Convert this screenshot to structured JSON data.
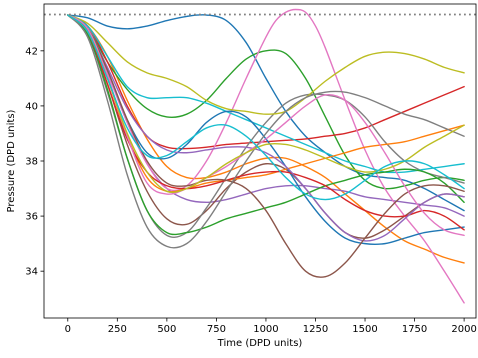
{
  "chart_data": {
    "type": "line",
    "xlabel": "Time (DPD units)",
    "ylabel": "Pressure (DPD units)",
    "xlim": [
      -120,
      2060
    ],
    "ylim": [
      32.3,
      43.7
    ],
    "x_ticks": [
      0,
      250,
      500,
      750,
      1000,
      1250,
      1500,
      1750,
      2000
    ],
    "y_ticks": [
      34,
      36,
      38,
      40,
      42
    ],
    "grid": false,
    "legend": "none",
    "reference_line": {
      "y": 43.32,
      "style": "dotted",
      "color": "#808080"
    },
    "series": [
      {
        "color": "#1f77b4",
        "x": [
          0,
          100,
          200,
          300,
          400,
          500,
          600,
          700,
          800,
          900,
          1000,
          1100,
          1200,
          1300,
          1400,
          1500,
          1600,
          1700,
          1800,
          1900,
          2000
        ],
        "values": [
          43.3,
          43.2,
          42.9,
          42.8,
          42.9,
          43.1,
          43.25,
          43.3,
          43.1,
          42.3,
          41.0,
          39.8,
          38.9,
          38.3,
          37.8,
          37.5,
          37.4,
          37.3,
          37.0,
          36.6,
          36.2
        ]
      },
      {
        "color": "#ff7f0e",
        "x": [
          0,
          100,
          200,
          300,
          400,
          500,
          600,
          700,
          800,
          900,
          1000,
          1100,
          1200,
          1300,
          1400,
          1500,
          1600,
          1700,
          1800,
          1900,
          2000
        ],
        "values": [
          43.3,
          42.9,
          41.8,
          40.2,
          38.8,
          37.8,
          37.4,
          37.4,
          37.6,
          37.9,
          38.1,
          38.1,
          37.8,
          37.4,
          36.8,
          36.2,
          35.6,
          35.1,
          34.8,
          34.5,
          34.3
        ]
      },
      {
        "color": "#2ca02c",
        "x": [
          0,
          100,
          200,
          300,
          400,
          500,
          600,
          700,
          800,
          900,
          1000,
          1100,
          1200,
          1300,
          1400,
          1500,
          1600,
          1700,
          1800,
          1900,
          2000
        ],
        "values": [
          43.3,
          42.8,
          41.6,
          40.6,
          39.9,
          39.6,
          39.7,
          40.2,
          41.0,
          41.7,
          42.0,
          41.9,
          41.0,
          39.6,
          38.2,
          37.3,
          37.0,
          37.1,
          37.3,
          37.4,
          37.3
        ]
      },
      {
        "color": "#d62728",
        "x": [
          0,
          100,
          200,
          300,
          400,
          500,
          600,
          700,
          800,
          900,
          1000,
          1100,
          1200,
          1300,
          1400,
          1500,
          1600,
          1700,
          1800,
          1900,
          2000
        ],
        "values": [
          43.3,
          42.9,
          41.6,
          40.0,
          38.9,
          38.5,
          38.45,
          38.5,
          38.6,
          38.65,
          38.7,
          38.75,
          38.8,
          38.9,
          39.0,
          39.2,
          39.5,
          39.8,
          40.1,
          40.4,
          40.7
        ]
      },
      {
        "color": "#9467bd",
        "x": [
          0,
          100,
          200,
          300,
          400,
          500,
          600,
          700,
          800,
          900,
          1000,
          1100,
          1200,
          1300,
          1400,
          1500,
          1600,
          1700,
          1800,
          1900,
          2000
        ],
        "values": [
          43.3,
          42.8,
          41.2,
          39.4,
          37.9,
          37.0,
          36.6,
          36.5,
          36.6,
          36.8,
          37.0,
          37.1,
          37.1,
          37.0,
          36.9,
          36.7,
          36.6,
          36.5,
          36.4,
          36.3,
          36.0
        ]
      },
      {
        "color": "#8c564b",
        "x": [
          0,
          100,
          200,
          300,
          400,
          500,
          600,
          700,
          800,
          900,
          1000,
          1100,
          1200,
          1300,
          1400,
          1500,
          1600,
          1700,
          1800,
          1900,
          2000
        ],
        "values": [
          43.3,
          42.7,
          40.8,
          38.6,
          36.9,
          35.9,
          35.7,
          36.2,
          37.0,
          37.6,
          37.9,
          37.7,
          37.0,
          36.1,
          35.4,
          35.2,
          35.5,
          36.0,
          36.5,
          36.8,
          36.7
        ]
      },
      {
        "color": "#e377c2",
        "x": [
          0,
          100,
          200,
          300,
          400,
          500,
          600,
          700,
          800,
          900,
          1000,
          1050,
          1100,
          1150,
          1200,
          1250,
          1300,
          1400,
          1500,
          1600,
          1700,
          1800,
          1900,
          2000
        ],
        "values": [
          43.3,
          42.8,
          41.2,
          39.4,
          37.9,
          37.0,
          37.1,
          38.0,
          39.4,
          41.0,
          42.5,
          43.1,
          43.4,
          43.5,
          43.4,
          42.9,
          42.1,
          40.2,
          38.4,
          37.0,
          36.0,
          35.1,
          34.0,
          32.85
        ]
      },
      {
        "color": "#7f7f7f",
        "x": [
          0,
          100,
          200,
          300,
          400,
          500,
          600,
          700,
          800,
          900,
          1000,
          1100,
          1200,
          1300,
          1400,
          1500,
          1600,
          1700,
          1800,
          1900,
          2000
        ],
        "values": [
          43.3,
          42.6,
          40.5,
          38.1,
          36.2,
          35.3,
          35.4,
          36.3,
          37.4,
          38.5,
          39.4,
          40.1,
          40.4,
          40.4,
          40.2,
          39.6,
          38.7,
          38.0,
          37.6,
          37.4,
          37.2
        ]
      },
      {
        "color": "#bcbd22",
        "x": [
          0,
          100,
          200,
          300,
          400,
          500,
          600,
          700,
          800,
          900,
          1000,
          1100,
          1200,
          1300,
          1400,
          1500,
          1600,
          1700,
          1800,
          1900,
          2000
        ],
        "values": [
          43.3,
          43.0,
          42.3,
          41.6,
          41.2,
          41.0,
          40.7,
          40.2,
          39.9,
          39.8,
          39.7,
          39.8,
          40.3,
          40.9,
          41.4,
          41.8,
          41.95,
          41.9,
          41.7,
          41.4,
          41.2
        ]
      },
      {
        "color": "#17becf",
        "x": [
          0,
          100,
          200,
          300,
          400,
          500,
          600,
          700,
          800,
          900,
          1000,
          1100,
          1200,
          1300,
          1400,
          1500,
          1600,
          1700,
          1800,
          1900,
          2000
        ],
        "values": [
          43.3,
          42.9,
          41.8,
          40.7,
          40.3,
          40.3,
          40.3,
          40.1,
          39.8,
          39.5,
          39.2,
          38.9,
          38.6,
          38.3,
          38.0,
          37.8,
          37.6,
          37.6,
          37.7,
          37.8,
          37.9
        ]
      },
      {
        "color": "#1f77b4",
        "x": [
          0,
          100,
          200,
          300,
          400,
          500,
          600,
          700,
          800,
          900,
          1000,
          1100,
          1200,
          1300,
          1400,
          1500,
          1600,
          1700,
          1800,
          1900,
          2000
        ],
        "values": [
          43.3,
          42.8,
          41.3,
          39.5,
          38.3,
          38.1,
          38.6,
          39.4,
          39.8,
          39.6,
          38.8,
          37.8,
          36.7,
          35.8,
          35.2,
          35.0,
          35.0,
          35.2,
          35.4,
          35.5,
          35.6
        ]
      },
      {
        "color": "#ff7f0e",
        "x": [
          0,
          100,
          200,
          300,
          400,
          500,
          600,
          700,
          800,
          900,
          1000,
          1100,
          1200,
          1300,
          1400,
          1500,
          1600,
          1700,
          1800,
          1900,
          2000
        ],
        "values": [
          43.3,
          42.7,
          41.0,
          38.9,
          37.4,
          36.9,
          37.0,
          37.2,
          37.3,
          37.4,
          37.5,
          37.7,
          37.9,
          38.1,
          38.3,
          38.5,
          38.6,
          38.7,
          38.9,
          39.1,
          39.3
        ]
      },
      {
        "color": "#2ca02c",
        "x": [
          0,
          100,
          200,
          300,
          400,
          500,
          600,
          700,
          800,
          900,
          1000,
          1100,
          1200,
          1300,
          1400,
          1500,
          1600,
          1700,
          1800,
          1900,
          2000
        ],
        "values": [
          43.3,
          42.6,
          40.6,
          38.1,
          36.2,
          35.4,
          35.4,
          35.6,
          35.9,
          36.1,
          36.3,
          36.5,
          36.8,
          37.1,
          37.3,
          37.5,
          37.6,
          37.7,
          37.6,
          37.2,
          36.5
        ]
      },
      {
        "color": "#d62728",
        "x": [
          0,
          100,
          200,
          300,
          400,
          500,
          600,
          700,
          800,
          900,
          1000,
          1100,
          1200,
          1300,
          1400,
          1500,
          1600,
          1700,
          1800,
          1900,
          2000
        ],
        "values": [
          43.3,
          42.7,
          40.8,
          38.8,
          37.6,
          37.1,
          37.0,
          37.1,
          37.3,
          37.5,
          37.6,
          37.6,
          37.4,
          37.1,
          36.6,
          36.2,
          36.0,
          36.0,
          36.2,
          36.0,
          35.5
        ]
      },
      {
        "color": "#9467bd",
        "x": [
          0,
          100,
          200,
          300,
          400,
          500,
          600,
          700,
          800,
          900,
          1000,
          1100,
          1200,
          1300,
          1400,
          1500,
          1600,
          1700,
          1800,
          1900,
          2000
        ],
        "values": [
          43.3,
          42.8,
          41.4,
          39.9,
          38.9,
          38.4,
          38.3,
          38.4,
          38.5,
          38.5,
          38.3,
          37.8,
          37.0,
          36.1,
          35.4,
          35.1,
          35.3,
          35.9,
          36.5,
          36.8,
          36.7
        ]
      },
      {
        "color": "#8c564b",
        "x": [
          0,
          100,
          200,
          300,
          400,
          500,
          600,
          700,
          800,
          900,
          1000,
          1100,
          1200,
          1300,
          1400,
          1500,
          1600,
          1700,
          1800,
          1900,
          2000
        ],
        "values": [
          43.3,
          42.8,
          41.3,
          39.5,
          38.0,
          37.2,
          37.1,
          37.3,
          37.3,
          37.0,
          36.2,
          35.0,
          34.0,
          33.8,
          34.3,
          35.2,
          36.1,
          36.8,
          37.1,
          37.1,
          36.9
        ]
      },
      {
        "color": "#e377c2",
        "x": [
          0,
          100,
          200,
          300,
          400,
          500,
          600,
          700,
          800,
          900,
          1000,
          1100,
          1200,
          1300,
          1400,
          1500,
          1600,
          1700,
          1800,
          1900,
          2000
        ],
        "values": [
          43.3,
          42.8,
          41.1,
          38.9,
          37.2,
          36.8,
          37.0,
          37.4,
          37.8,
          38.3,
          38.8,
          39.4,
          40.0,
          40.4,
          40.2,
          39.4,
          38.3,
          37.1,
          36.1,
          35.5,
          35.3
        ]
      },
      {
        "color": "#7f7f7f",
        "x": [
          0,
          100,
          200,
          300,
          400,
          500,
          600,
          700,
          800,
          900,
          1000,
          1100,
          1200,
          1300,
          1400,
          1500,
          1600,
          1700,
          1800,
          1900,
          2000
        ],
        "values": [
          43.3,
          42.5,
          40.2,
          37.5,
          35.6,
          34.9,
          35.0,
          35.8,
          36.9,
          38.0,
          39.0,
          39.8,
          40.3,
          40.5,
          40.5,
          40.3,
          40.0,
          39.7,
          39.5,
          39.2,
          38.9
        ]
      },
      {
        "color": "#bcbd22",
        "x": [
          0,
          100,
          200,
          300,
          400,
          500,
          600,
          700,
          800,
          900,
          1000,
          1100,
          1200,
          1300,
          1400,
          1500,
          1600,
          1700,
          1800,
          1900,
          2000
        ],
        "values": [
          43.3,
          42.7,
          41.0,
          39.0,
          37.6,
          36.9,
          37.0,
          37.4,
          37.9,
          38.3,
          38.6,
          38.6,
          38.4,
          38.1,
          37.8,
          37.6,
          37.7,
          38.0,
          38.5,
          38.9,
          39.3
        ]
      },
      {
        "color": "#17becf",
        "x": [
          0,
          100,
          200,
          300,
          400,
          500,
          600,
          700,
          800,
          900,
          1000,
          1100,
          1200,
          1300,
          1400,
          1500,
          1600,
          1700,
          1800,
          1900,
          2000
        ],
        "values": [
          43.3,
          42.7,
          41.0,
          39.2,
          38.2,
          38.2,
          38.7,
          39.2,
          39.3,
          38.9,
          38.2,
          37.4,
          36.8,
          36.6,
          36.8,
          37.3,
          37.8,
          38.0,
          37.9,
          37.5,
          37.0
        ]
      }
    ]
  }
}
